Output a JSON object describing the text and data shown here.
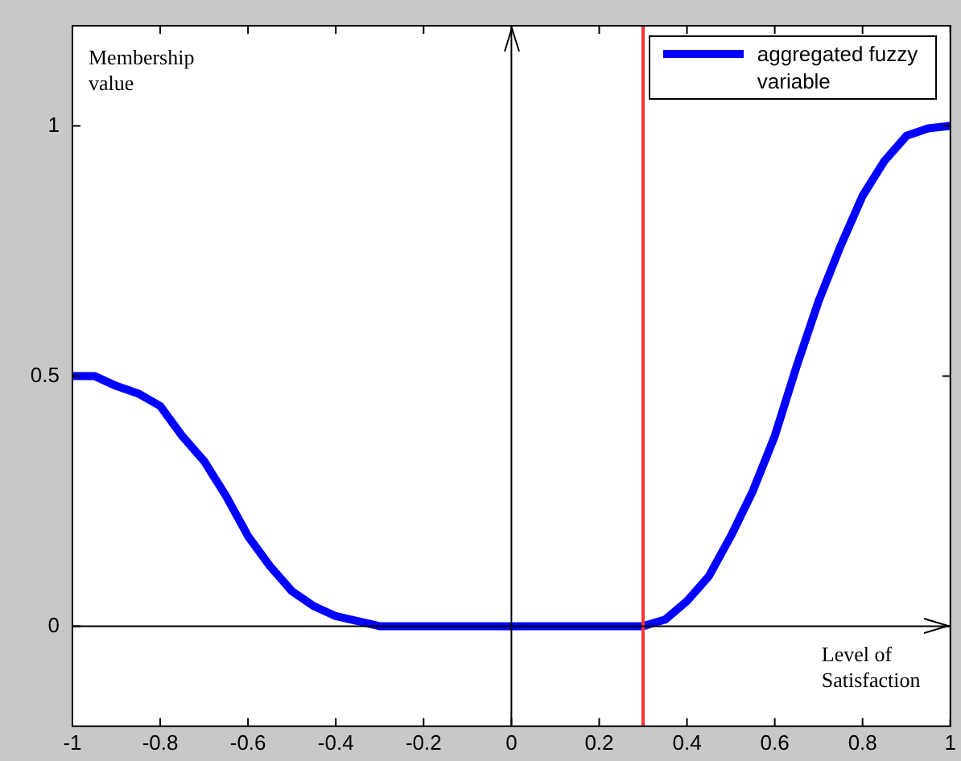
{
  "chart_data": {
    "type": "line",
    "xlabel": "Level of Satisfaction",
    "ylabel": "Membership value",
    "x": [
      -1,
      -0.95,
      -0.9,
      -0.85,
      -0.8,
      -0.75,
      -0.7,
      -0.65,
      -0.6,
      -0.55,
      -0.5,
      -0.45,
      -0.4,
      -0.35,
      -0.3,
      -0.2,
      -0.1,
      0,
      0.1,
      0.2,
      0.3,
      0.35,
      0.4,
      0.45,
      0.5,
      0.55,
      0.6,
      0.65,
      0.7,
      0.75,
      0.8,
      0.85,
      0.9,
      0.95,
      1
    ],
    "series": [
      {
        "name": "aggregated fuzzy variable",
        "color": "#0000ff",
        "values": [
          0.5,
          0.5,
          0.48,
          0.465,
          0.44,
          0.38,
          0.33,
          0.26,
          0.18,
          0.12,
          0.07,
          0.04,
          0.02,
          0.01,
          0,
          0,
          0,
          0,
          0,
          0,
          0,
          0.013,
          0.05,
          0.1,
          0.18,
          0.27,
          0.38,
          0.52,
          0.65,
          0.76,
          0.86,
          0.93,
          0.98,
          0.995,
          1
        ]
      }
    ],
    "xlim": [
      -1,
      1
    ],
    "xticks": [
      -1,
      -0.8,
      -0.6,
      -0.4,
      -0.2,
      0,
      0.2,
      0.4,
      0.6,
      0.8,
      1
    ],
    "ylim": [
      -0.2,
      1.2
    ],
    "yticks": [
      0,
      0.5,
      1
    ],
    "ref_lines": [
      {
        "axis": "x",
        "value": 0.3,
        "color": "#ff3333"
      },
      {
        "axis": "x",
        "value": 0,
        "color": "#000000"
      },
      {
        "axis": "y",
        "value": 0,
        "color": "#000000"
      }
    ],
    "grid": false,
    "legend": "top right",
    "marker": "none",
    "line_style": "solid"
  }
}
